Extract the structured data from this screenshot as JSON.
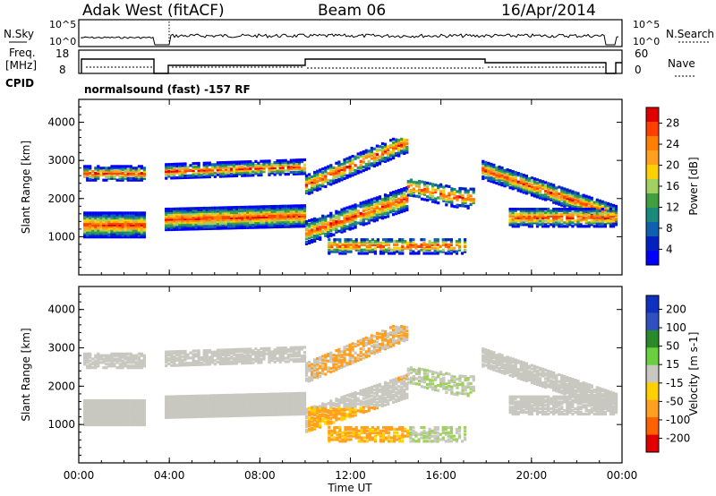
{
  "header": {
    "station": "Adak West (fitACF)",
    "beam": "Beam 06",
    "date": "16/Apr/2014"
  },
  "noise_panel": {
    "left_label": "N.Sky",
    "right_label": "N.Search",
    "ticks_left": [
      "10^5",
      "10^0"
    ],
    "ticks_right": [
      "10^5",
      "10^0"
    ]
  },
  "freq_panel": {
    "left_label_1": "Freq.",
    "left_label_2": "[MHz]",
    "right_label": "Nave",
    "ticks_left": [
      "18",
      "8"
    ],
    "ticks_right": [
      "60",
      "0"
    ],
    "cpid_label": "CPID",
    "cpid_text": "normalsound (fast) -157 RF"
  },
  "chart_data": [
    {
      "type": "heatmap",
      "name": "power",
      "xlabel": "Time UT",
      "ylabel": "Slant Range [km]",
      "x_ticks": [
        "00:00",
        "04:00",
        "08:00",
        "12:00",
        "16:00",
        "20:00",
        "00:00"
      ],
      "y_ticks": [
        1000,
        2000,
        3000,
        4000
      ],
      "colorbar_label": "Power [dB]",
      "colorbar_ticks": [
        "28",
        "24",
        "20",
        "16",
        "12",
        "8",
        "4"
      ],
      "colorbar_colors": [
        "#e00000",
        "#ff4000",
        "#ff8000",
        "#ffa020",
        "#ffd000",
        "#a0d060",
        "#40a040",
        "#1a8a7a",
        "#1060b0",
        "#0020c0",
        "#0000ff"
      ]
    },
    {
      "type": "heatmap",
      "name": "velocity",
      "xlabel": "Time UT",
      "ylabel": "Slant Range [km]",
      "x_ticks": [
        "00:00",
        "04:00",
        "08:00",
        "12:00",
        "16:00",
        "20:00",
        "00:00"
      ],
      "y_ticks": [
        1000,
        2000,
        3000,
        4000
      ],
      "colorbar_label": "Velocity [m s-1]",
      "colorbar_ticks": [
        "200",
        "100",
        "50",
        "15",
        "-15",
        "-50",
        "-100",
        "-200"
      ],
      "colorbar_colors": [
        "#1030c0",
        "#3050c0",
        "#2a8a2a",
        "#6ad040",
        "#c8c8c0",
        "#ffd000",
        "#ffa020",
        "#ff6000",
        "#e00000"
      ]
    }
  ]
}
